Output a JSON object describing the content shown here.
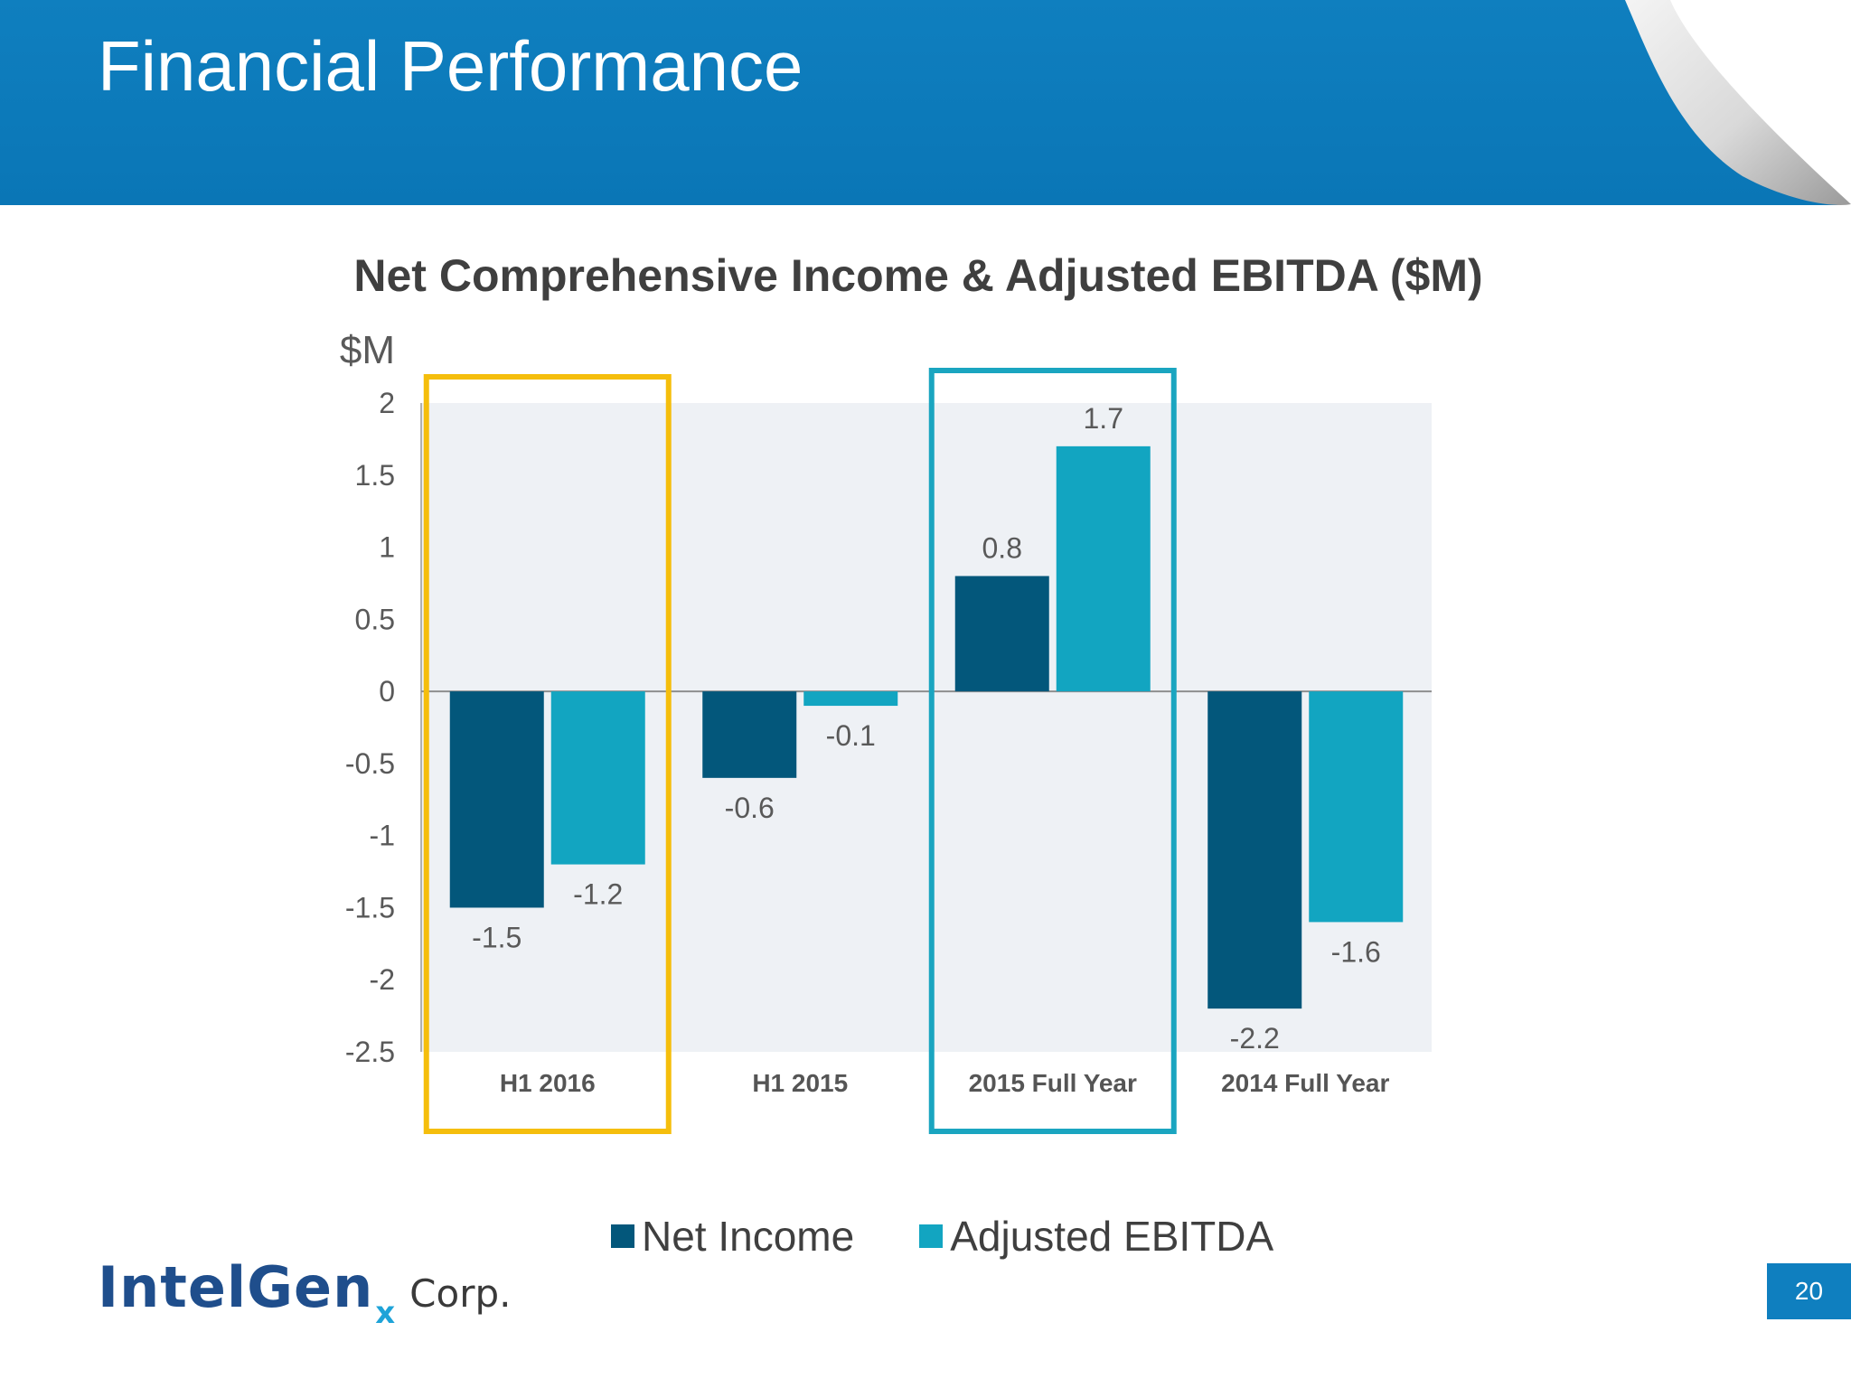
{
  "slide": {
    "title": "Financial Performance",
    "page_number": "20",
    "logo": {
      "main": "IntelGen",
      "sub": "x",
      "suffix": "Corp."
    }
  },
  "colors": {
    "header": "#0f7fbf",
    "net_income": "#03577b",
    "adjusted_ebitda": "#12a5c1",
    "highlight_h1_2016": "#f5be0c",
    "highlight_2015": "#1aa5c0"
  },
  "chart_data": {
    "type": "bar",
    "title": "Net Comprehensive Income & Adjusted EBITDA ($M)",
    "ylabel": "$M",
    "xlabel": "",
    "categories": [
      "H1 2016",
      "H1 2015",
      "2015 Full Year",
      "2014 Full Year"
    ],
    "series": [
      {
        "name": "Net Income",
        "values": [
          -1.5,
          -0.6,
          0.8,
          -2.2
        ],
        "labels": [
          "-1.5",
          "-0.6",
          "0.8",
          "-2.2"
        ],
        "color": "#03577b"
      },
      {
        "name": "Adjusted EBITDA",
        "values": [
          -1.2,
          -0.1,
          1.7,
          -1.6
        ],
        "labels": [
          "-1.2",
          "-0.1",
          "1.7",
          "-1.6"
        ],
        "color": "#12a5c1"
      }
    ],
    "ylim": [
      -2.5,
      2
    ],
    "yticks": [
      2,
      1.5,
      1,
      0.5,
      0,
      -0.5,
      -1,
      -1.5,
      -2,
      -2.5
    ],
    "ytick_labels": [
      "2",
      "1.5",
      "1",
      "0.5",
      "0",
      "-0.5",
      "-1",
      "-1.5",
      "-2",
      "-2.5"
    ],
    "grid": false,
    "legend": "bottom",
    "highlighted_categories": [
      "H1 2016",
      "2015 Full Year"
    ]
  }
}
